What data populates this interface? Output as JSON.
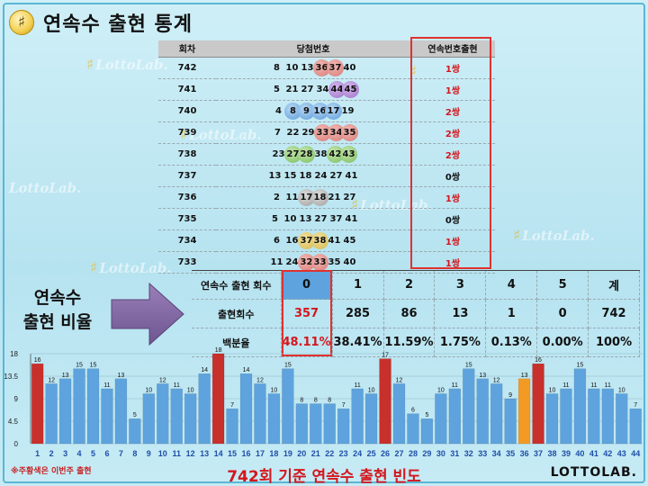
{
  "title": "연속수 출현 통계",
  "watermark": "LottoLab.",
  "draw_table": {
    "headers": [
      "회차",
      "당첨번호",
      "연속번호출현"
    ],
    "rows": [
      {
        "round": "742",
        "numbers": [
          8,
          10,
          13,
          36,
          37,
          40
        ],
        "highlight": [
          36,
          37
        ],
        "hl_color": "red",
        "consecutive": "1쌍"
      },
      {
        "round": "741",
        "numbers": [
          5,
          21,
          27,
          34,
          44,
          45
        ],
        "highlight": [
          44,
          45
        ],
        "hl_color": "purple",
        "consecutive": "1쌍"
      },
      {
        "round": "740",
        "numbers": [
          4,
          8,
          9,
          16,
          17,
          19
        ],
        "highlight": [
          8,
          9,
          16,
          17
        ],
        "hl_color": "blue",
        "consecutive": "2쌍"
      },
      {
        "round": "739",
        "numbers": [
          7,
          22,
          29,
          33,
          34,
          35
        ],
        "highlight": [
          33,
          34,
          35
        ],
        "hl_color": "red",
        "consecutive": "2쌍"
      },
      {
        "round": "738",
        "numbers": [
          23,
          27,
          28,
          38,
          42,
          43
        ],
        "highlight": [
          27,
          28,
          42,
          43
        ],
        "hl_color": "green",
        "consecutive": "2쌍"
      },
      {
        "round": "737",
        "numbers": [
          13,
          15,
          18,
          24,
          27,
          41
        ],
        "highlight": [],
        "hl_color": "",
        "consecutive": "0쌍"
      },
      {
        "round": "736",
        "numbers": [
          2,
          11,
          17,
          18,
          21,
          27
        ],
        "highlight": [
          17,
          18
        ],
        "hl_color": "gray",
        "consecutive": "1쌍"
      },
      {
        "round": "735",
        "numbers": [
          5,
          10,
          13,
          27,
          37,
          41
        ],
        "highlight": [],
        "hl_color": "",
        "consecutive": "0쌍"
      },
      {
        "round": "734",
        "numbers": [
          6,
          16,
          37,
          38,
          41,
          45
        ],
        "highlight": [
          37,
          38
        ],
        "hl_color": "yellow",
        "consecutive": "1쌍"
      },
      {
        "round": "733",
        "numbers": [
          11,
          24,
          32,
          33,
          35,
          40
        ],
        "highlight": [
          32,
          33
        ],
        "hl_color": "red",
        "consecutive": "1쌍"
      }
    ]
  },
  "ratio_label_line1": "연속수",
  "ratio_label_line2": "출현 비율",
  "stats_table": {
    "row_labels": [
      "연속수 출현 회수",
      "출현회수",
      "백분율"
    ],
    "columns": [
      "0",
      "1",
      "2",
      "3",
      "4",
      "5",
      "계"
    ],
    "counts": [
      "357",
      "285",
      "86",
      "13",
      "1",
      "0",
      "742"
    ],
    "percents": [
      "48.11%",
      "38.41%",
      "11.59%",
      "1.75%",
      "0.13%",
      "0.00%",
      "100%"
    ]
  },
  "chart_data": {
    "type": "bar",
    "categories": [
      "1",
      "2",
      "3",
      "4",
      "5",
      "6",
      "7",
      "8",
      "9",
      "10",
      "11",
      "12",
      "13",
      "14",
      "15",
      "16",
      "17",
      "18",
      "19",
      "20",
      "21",
      "22",
      "23",
      "24",
      "25",
      "26",
      "27",
      "28",
      "29",
      "30",
      "31",
      "32",
      "33",
      "34",
      "35",
      "36",
      "37",
      "38",
      "39",
      "40",
      "41",
      "42",
      "43",
      "44"
    ],
    "values": [
      16,
      12,
      13,
      15,
      15,
      11,
      13,
      5,
      10,
      12,
      11,
      10,
      14,
      18,
      7,
      14,
      12,
      10,
      15,
      8,
      8,
      8,
      7,
      11,
      10,
      17,
      12,
      6,
      5,
      10,
      11,
      15,
      13,
      12,
      9,
      13,
      16,
      10,
      11,
      15,
      11,
      11,
      10,
      7
    ],
    "bar_colors": {
      "red": [
        1,
        14,
        26,
        37
      ],
      "orange": [
        36
      ]
    },
    "colors": {
      "blue": "#5ea3dd",
      "red": "#c8302c",
      "orange": "#f39a25"
    },
    "yticks": [
      "0",
      "4.5",
      "9",
      "13.5",
      "18"
    ],
    "ylim": [
      0,
      18
    ],
    "grid": true
  },
  "footnote": "※주황색은 이번주 출현",
  "caption": "742회 기준 연속수 출현 빈도",
  "brand": "LOTTOLAB."
}
